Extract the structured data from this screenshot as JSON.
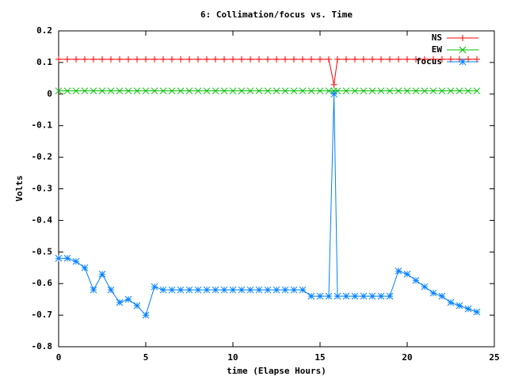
{
  "chart_data": {
    "type": "line",
    "title": "6: Collimation/focus vs. Time",
    "x_label": "time (Elapse Hours)",
    "y_label": "Volts",
    "x": [
      0,
      0.5,
      1,
      1.5,
      2,
      2.5,
      3,
      3.5,
      4,
      4.5,
      5,
      5.5,
      6,
      6.5,
      7,
      7.5,
      8,
      8.5,
      9,
      9.5,
      10,
      10.5,
      11,
      11.5,
      12,
      12.5,
      13,
      13.5,
      14,
      14.5,
      15,
      15.5,
      15.8,
      16,
      16.5,
      17,
      17.5,
      18,
      18.5,
      19,
      19.5,
      20,
      20.5,
      21,
      21.5,
      22,
      22.5,
      23,
      23.5,
      24
    ],
    "series": [
      {
        "name": "NS",
        "color": "#ff0000",
        "marker": "plus",
        "values": [
          0.11,
          0.11,
          0.11,
          0.11,
          0.11,
          0.11,
          0.11,
          0.11,
          0.11,
          0.11,
          0.11,
          0.11,
          0.11,
          0.11,
          0.11,
          0.11,
          0.11,
          0.11,
          0.11,
          0.11,
          0.11,
          0.11,
          0.11,
          0.11,
          0.11,
          0.11,
          0.11,
          0.11,
          0.11,
          0.11,
          0.11,
          0.11,
          0.03,
          0.11,
          0.11,
          0.11,
          0.11,
          0.11,
          0.11,
          0.11,
          0.11,
          0.11,
          0.11,
          0.11,
          0.11,
          0.11,
          0.11,
          0.11,
          0.11,
          0.11
        ]
      },
      {
        "name": "EW",
        "color": "#00c000",
        "marker": "cross",
        "values": [
          0.01,
          0.01,
          0.01,
          0.01,
          0.01,
          0.01,
          0.01,
          0.01,
          0.01,
          0.01,
          0.01,
          0.01,
          0.01,
          0.01,
          0.01,
          0.01,
          0.01,
          0.01,
          0.01,
          0.01,
          0.01,
          0.01,
          0.01,
          0.01,
          0.01,
          0.01,
          0.01,
          0.01,
          0.01,
          0.01,
          0.01,
          0.01,
          0.01,
          0.01,
          0.01,
          0.01,
          0.01,
          0.01,
          0.01,
          0.01,
          0.01,
          0.01,
          0.01,
          0.01,
          0.01,
          0.01,
          0.01,
          0.01,
          0.01,
          0.01
        ]
      },
      {
        "name": "focus",
        "color": "#0080ff",
        "marker": "star",
        "values": [
          -0.52,
          -0.52,
          -0.53,
          -0.55,
          -0.62,
          -0.57,
          -0.62,
          -0.66,
          -0.65,
          -0.67,
          -0.7,
          -0.61,
          -0.62,
          -0.62,
          -0.62,
          -0.62,
          -0.62,
          -0.62,
          -0.62,
          -0.62,
          -0.62,
          -0.62,
          -0.62,
          -0.62,
          -0.62,
          -0.62,
          -0.62,
          -0.62,
          -0.62,
          -0.64,
          -0.64,
          -0.64,
          0,
          -0.64,
          -0.64,
          -0.64,
          -0.64,
          -0.64,
          -0.64,
          -0.64,
          -0.56,
          -0.57,
          -0.59,
          -0.61,
          -0.63,
          -0.64,
          -0.66,
          -0.67,
          -0.68,
          -0.69
        ]
      }
    ],
    "xlim": [
      0,
      25
    ],
    "xticks": [
      0,
      5,
      10,
      15,
      20,
      25
    ],
    "ylim": [
      -0.8,
      0.2
    ],
    "yticks": [
      -0.8,
      -0.7,
      -0.6,
      -0.5,
      -0.4,
      -0.3,
      -0.2,
      -0.1,
      0,
      0.1,
      0.2
    ],
    "legend": "top-right",
    "grid": false
  }
}
